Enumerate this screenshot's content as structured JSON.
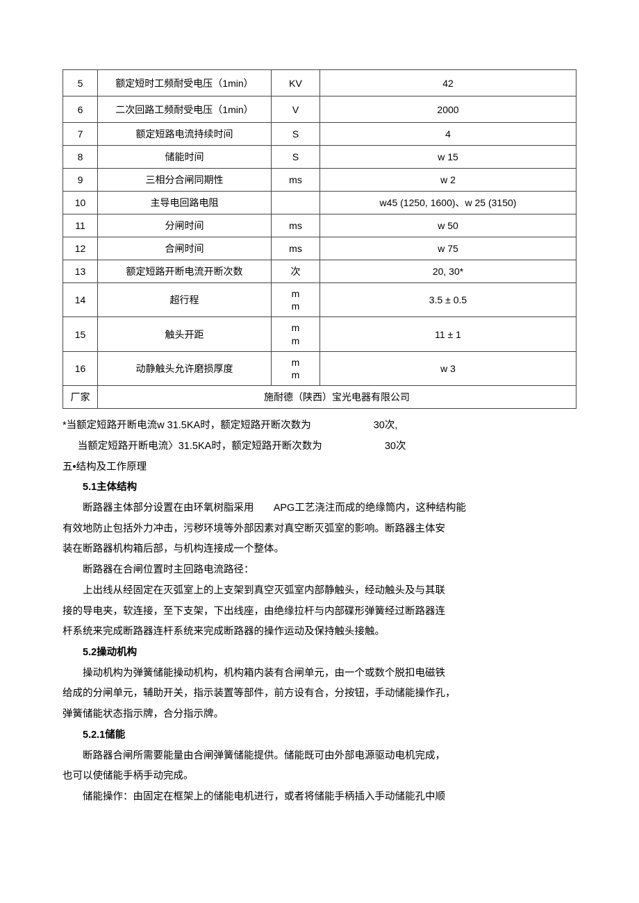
{
  "table": {
    "rows": [
      {
        "idx": "5",
        "name": "额定短时工频耐受电压（1min）",
        "unit": "KV",
        "val": "42",
        "tall": true
      },
      {
        "idx": "6",
        "name": "二次回路工频耐受电压（1min）",
        "unit": "V",
        "val": "2000",
        "tall": true
      },
      {
        "idx": "7",
        "name": "额定短路电流持续时间",
        "unit": "S",
        "val": "4"
      },
      {
        "idx": "8",
        "name": "储能时间",
        "unit": "S",
        "val": "w 15"
      },
      {
        "idx": "9",
        "name": "三相分合闸同期性",
        "unit": "ms",
        "val": "w 2"
      },
      {
        "idx": "10",
        "name": "主导电回路电阻",
        "unit": "",
        "val": "w45 (1250, 1600)、w 25 (3150)"
      },
      {
        "idx": "11",
        "name": "分闸时间",
        "unit": "ms",
        "val": "w 50"
      },
      {
        "idx": "12",
        "name": "合闸时间",
        "unit": "ms",
        "val": "w 75"
      },
      {
        "idx": "13",
        "name": "额定短路开断电流开断次数",
        "unit": "次",
        "val": "20, 30*"
      },
      {
        "idx": "14",
        "name": "超行程",
        "unit": "m\nm",
        "val": "3.5 ± 0.5"
      },
      {
        "idx": "15",
        "name": "触头开距",
        "unit": "m\nm",
        "val": "11 ± 1"
      },
      {
        "idx": "16",
        "name": "动静触头允许磨损厚度",
        "unit": "m\nm",
        "val": "w 3"
      }
    ],
    "footer_label": "厂家",
    "footer_value": "施耐德（陕西）宝光电器有限公司"
  },
  "notes": {
    "line1_a": "*当额定短路开断电流w 31.5KA时，额定短路开断次数为",
    "line1_b": "30次,",
    "line2_a": "当额定短路开断电流〉31.5KA时，额定短路开断次数为",
    "line2_b": "30次"
  },
  "section5": {
    "title": "五•结构及工作原理",
    "s51_title": "5.1主体结构",
    "s51_p1_a": "断路器主体部分设置在由环氧树脂采用",
    "s51_p1_b": "APG工艺浇注而成的绝缘筒内，这种结构能",
    "s51_p2": "有效地防止包括外力冲击，污秽环境等外部因素对真空断灭弧室的影响。断路器主体安",
    "s51_p3": "装在断路器机构箱后部，与机构连接成一个整体。",
    "s51_p4": "断路器在合闸位置时主回路电流路径：",
    "s51_p5": "上出线从经固定在灭弧室上的上支架到真空灭弧室内部静触头，经动触头及与其联",
    "s51_p6": "接的导电夹，软连接，至下支架，下出线座，由绝缘拉杆与内部碟形弹簧经过断路器连",
    "s51_p7": "杆系统来完成断路器连杆系统来完成断路器的操作运动及保持触头接触。",
    "s52_title": "5.2操动机构",
    "s52_p1": "操动机构为弹簧储能操动机构，机构箱内装有合闸单元，由一个或数个脱扣电磁铁",
    "s52_p2": "给成的分闸单元，辅助开关，指示装置等部件，前方设有合，分按钮，手动储能操作孔，",
    "s52_p3": "弹簧储能状态指示牌，合分指示牌。",
    "s521_title": "5.2.1储能",
    "s521_p1": "断路器合闸所需要能量由合闸弹簧储能提供。储能既可由外部电源驱动电机完成，",
    "s521_p2": "也可以使储能手柄手动完成。",
    "s521_p3": "储能操作：由固定在框架上的储能电机进行，或者将储能手柄插入手动储能孔中顺"
  }
}
